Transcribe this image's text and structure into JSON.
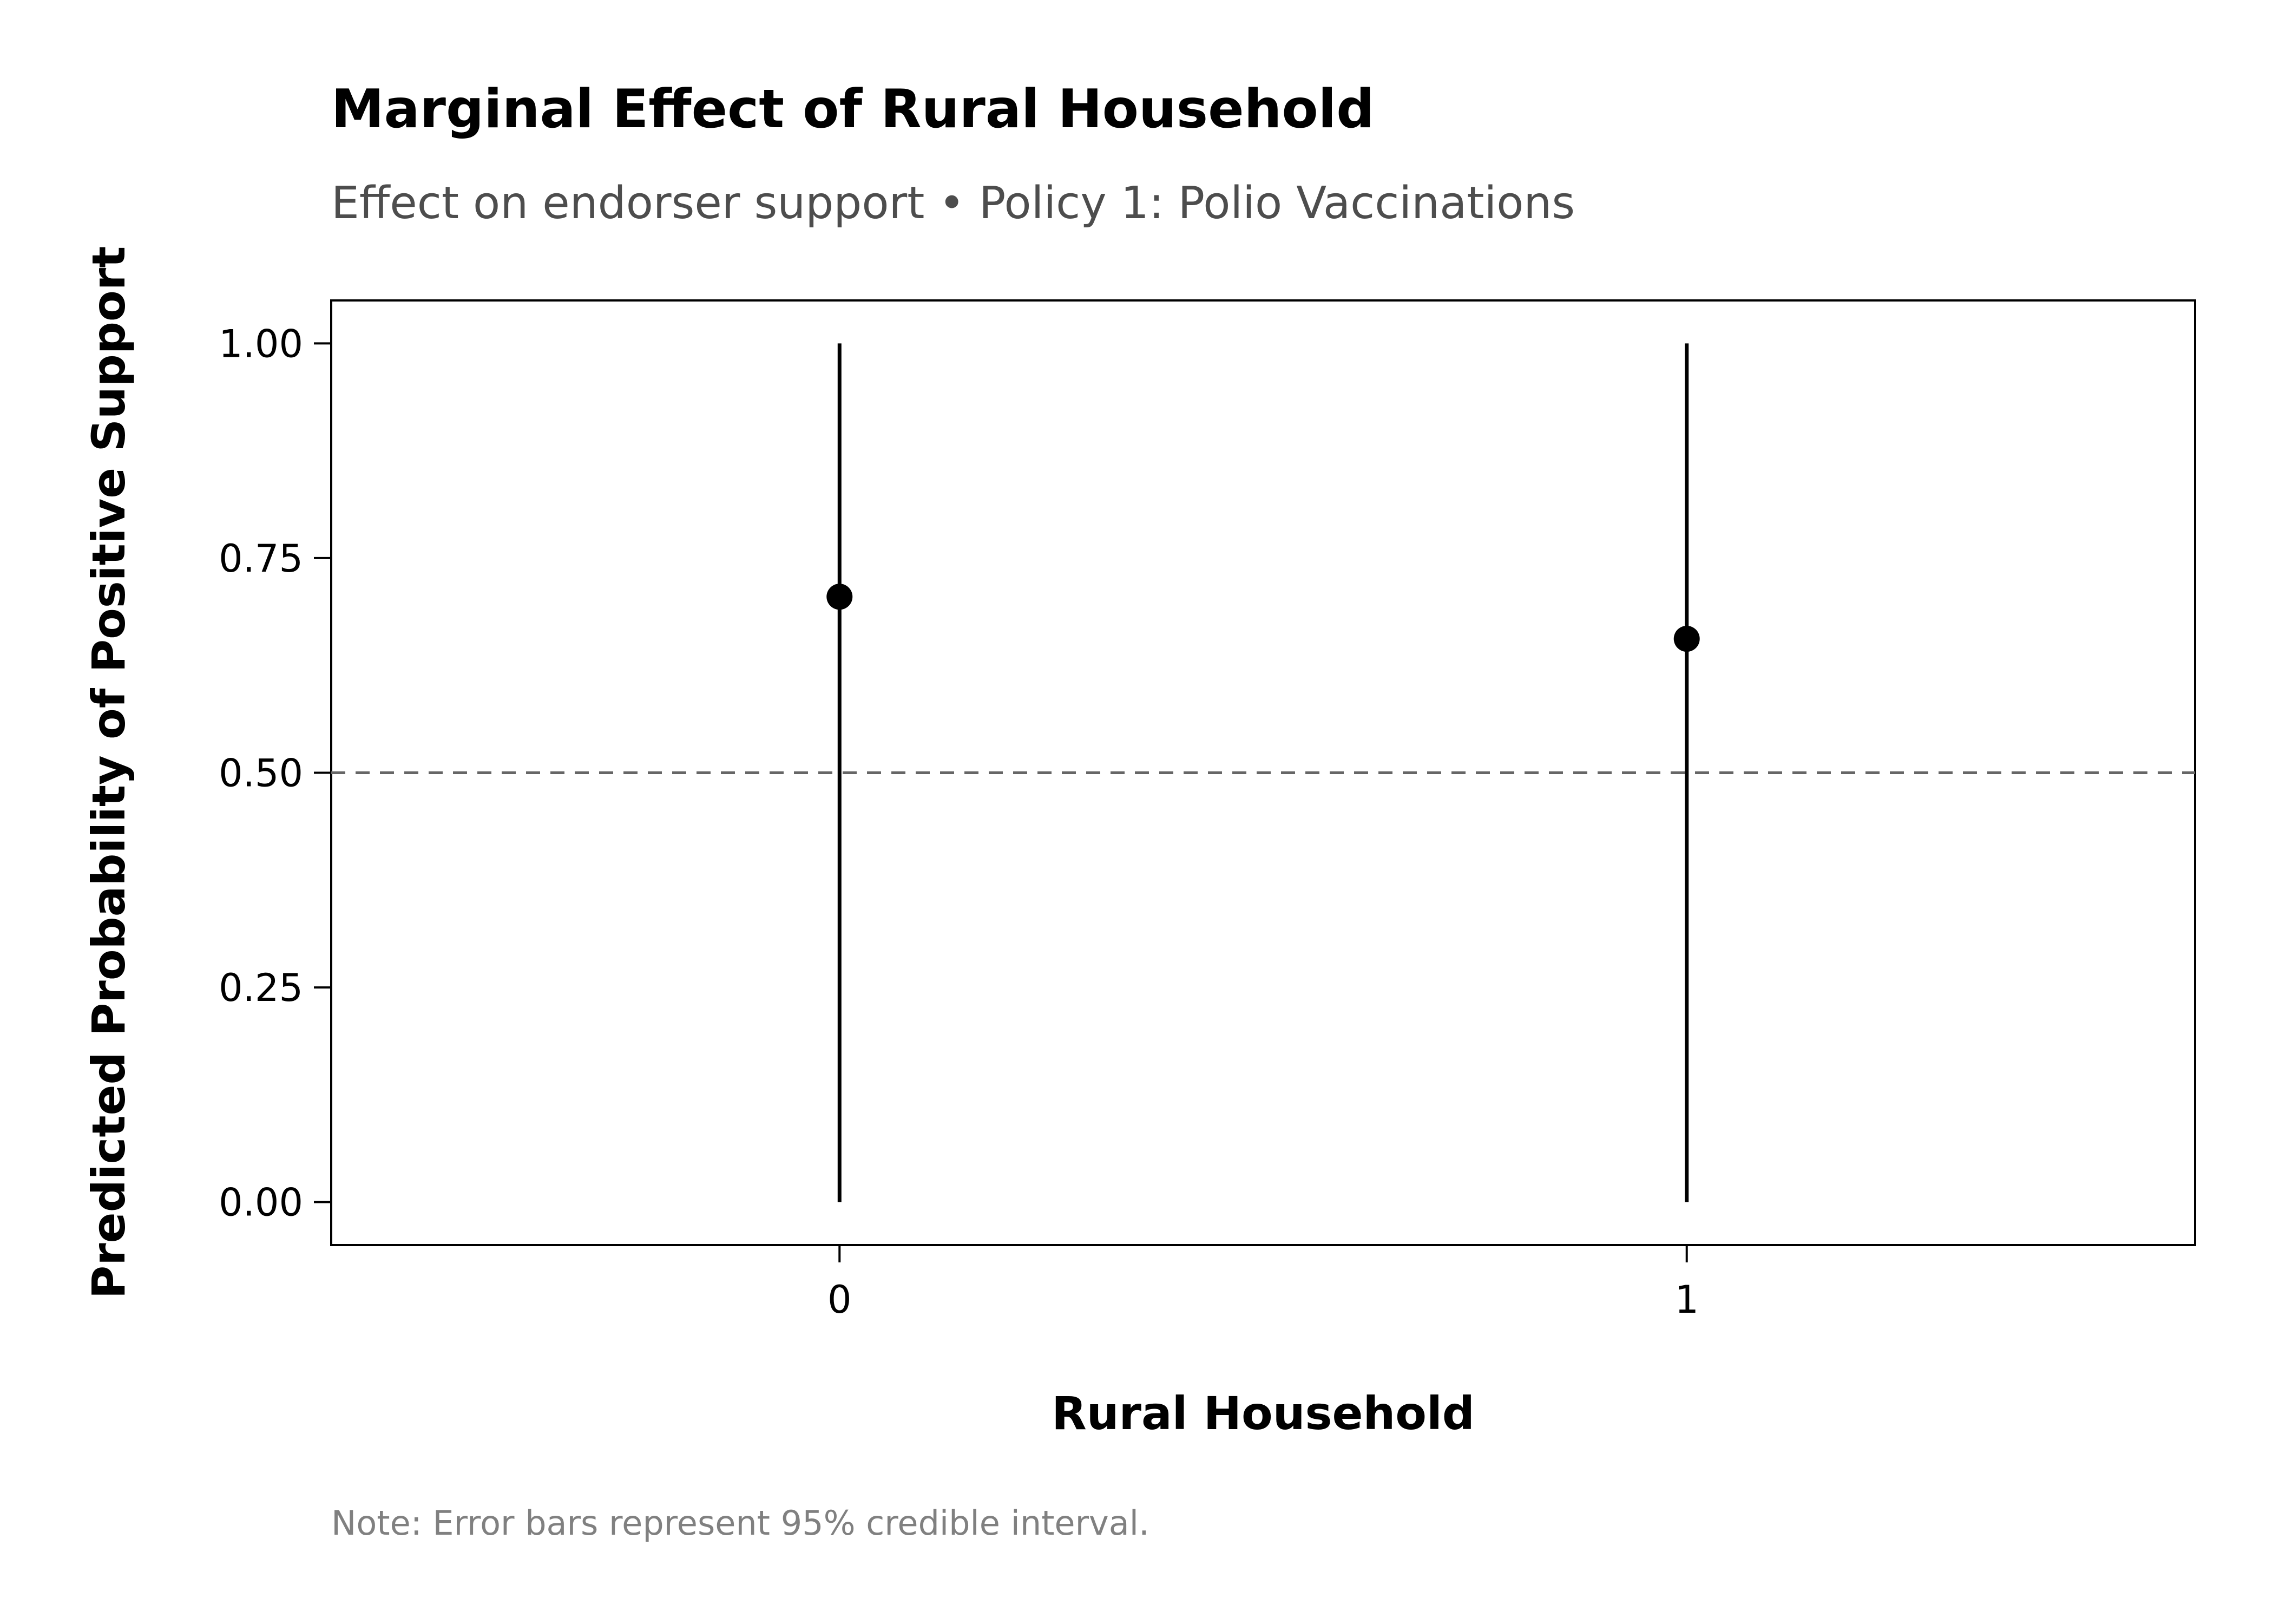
{
  "chart_data": {
    "type": "scatter",
    "title": "Marginal Effect of Rural Household",
    "subtitle": "Effect on endorser support • Policy 1: Polio Vaccinations",
    "xlabel": "Rural Household",
    "ylabel": "Predicted Probability of Positive Support",
    "categories": [
      "0",
      "1"
    ],
    "values": [
      0.705,
      0.656
    ],
    "ci_lower": [
      0.0,
      0.0
    ],
    "ci_upper": [
      1.0,
      1.0
    ],
    "ylim": [
      -0.05,
      1.05
    ],
    "yticks": [
      0.0,
      0.25,
      0.5,
      0.75,
      1.0
    ],
    "ytick_labels": [
      "0.00",
      "0.25",
      "0.50",
      "0.75",
      "1.00"
    ],
    "reference_line": 0.5,
    "grid": false,
    "note": "Note: Error bars represent 95% credible interval.",
    "colors": {
      "points": "#000000",
      "reference_line": "#666666"
    }
  }
}
